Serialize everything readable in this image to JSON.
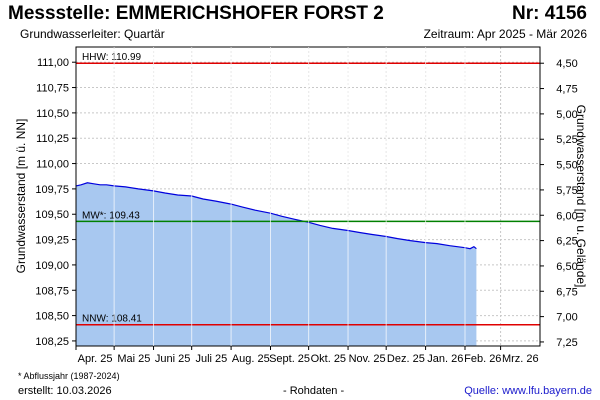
{
  "header": {
    "title": "Messstelle: EMMERICHSHOFER FORST 2",
    "number": "Nr: 4156",
    "subtitle": "Grundwasserleiter: Quartär",
    "period": "Zeitraum: Apr 2025 - Mär 2026"
  },
  "footer": {
    "footnote": "* Abflussjahr (1987-2024)",
    "created": "erstellt:  10.03.2026",
    "raw_data": "- Rohdaten -",
    "source": "Quelle: www.lfu.bayern.de"
  },
  "colors": {
    "fill": "#a8c8f0",
    "line": "#0000dd",
    "hhw": "#e00000",
    "mw": "#008000",
    "nnw": "#e00000",
    "grid": "#c8c8c8"
  },
  "chart_data": {
    "type": "area",
    "xlabel": "",
    "ylabel": "Grundwasserstand [m ü. NN]",
    "y2label": "Grundwasserstand [m u. Gelände]",
    "ylim": [
      108.2,
      111.15
    ],
    "xlim": [
      "2025-04-01",
      "2026-04-01"
    ],
    "yticks": [
      "111,00",
      "110,75",
      "110,50",
      "110,25",
      "110,00",
      "109,75",
      "109,50",
      "109,25",
      "109,00",
      "108,75",
      "108,50",
      "108,25"
    ],
    "y2ticks": [
      "4,50",
      "4,75",
      "5,00",
      "5,25",
      "5,50",
      "5,75",
      "6,00",
      "6,25",
      "6,50",
      "6,75",
      "7,00",
      "7,25"
    ],
    "xticks": [
      "Apr. 25",
      "Mai 25",
      "Juni 25",
      "Juli 25",
      "Aug. 25",
      "Sept. 25",
      "Okt. 25",
      "Nov. 25",
      "Dez. 25",
      "Jan. 26",
      "Feb. 26",
      "Mrz. 26"
    ],
    "grid": true,
    "reference_lines": [
      {
        "label": "HHW: 110.99",
        "value": 110.99
      },
      {
        "label": "MW*: 109.43",
        "value": 109.43
      },
      {
        "label": "NNW: 108.41",
        "value": 108.41
      }
    ],
    "series": [
      {
        "x": [
          "2025-04-01",
          "2025-04-05",
          "2025-04-10",
          "2025-04-15",
          "2025-04-20",
          "2025-04-25",
          "2025-05-01",
          "2025-05-10",
          "2025-05-20",
          "2025-06-01",
          "2025-06-10",
          "2025-06-20",
          "2025-07-01",
          "2025-07-10",
          "2025-07-20",
          "2025-08-01",
          "2025-08-10",
          "2025-08-20",
          "2025-09-01",
          "2025-09-10",
          "2025-09-20",
          "2025-10-01",
          "2025-10-10",
          "2025-10-20",
          "2025-11-01",
          "2025-11-10",
          "2025-11-20",
          "2025-12-01",
          "2025-12-10",
          "2025-12-20",
          "2026-01-01",
          "2026-01-10",
          "2026-01-20",
          "2026-02-01",
          "2026-02-05",
          "2026-02-08",
          "2026-02-10"
        ],
        "values": [
          109.78,
          109.79,
          109.81,
          109.8,
          109.79,
          109.79,
          109.78,
          109.77,
          109.75,
          109.73,
          109.71,
          109.69,
          109.68,
          109.65,
          109.63,
          109.6,
          109.57,
          109.54,
          109.51,
          109.48,
          109.45,
          109.42,
          109.39,
          109.36,
          109.34,
          109.32,
          109.3,
          109.28,
          109.26,
          109.24,
          109.22,
          109.21,
          109.19,
          109.17,
          109.16,
          109.18,
          109.16
        ]
      }
    ]
  }
}
